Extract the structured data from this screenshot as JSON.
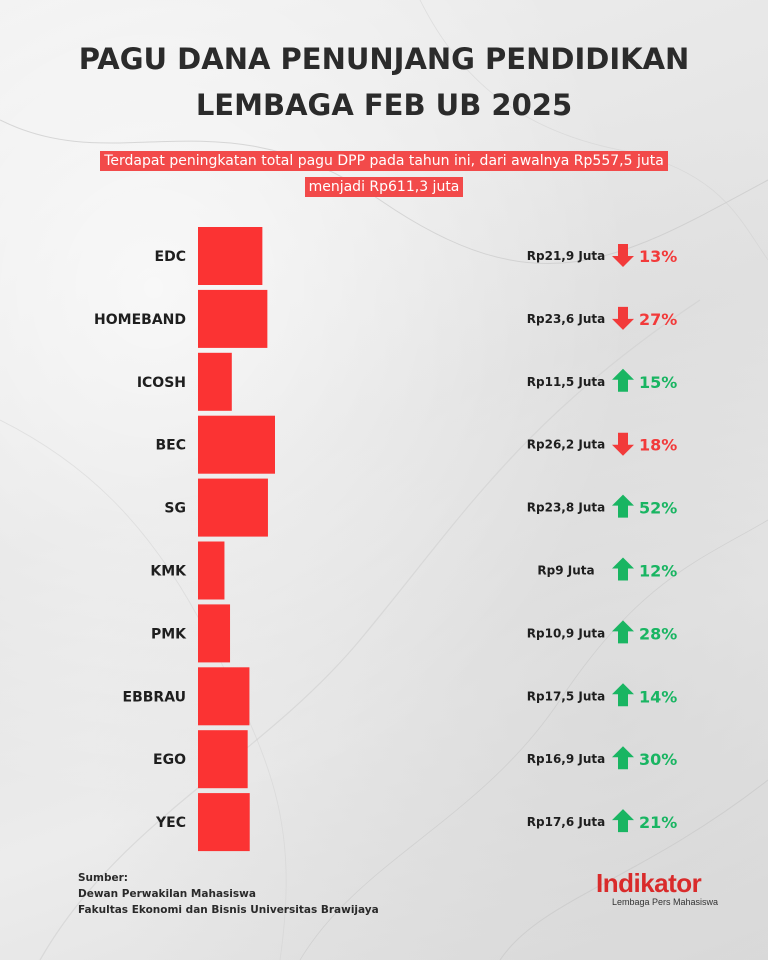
{
  "title_line1": "PAGU DANA PENUNJANG PENDIDIKAN",
  "title_line2": "LEMBAGA FEB UB 2025",
  "subtitle": "Terdapat peningkatan total pagu DPP pada tahun ini, dari awalnya Rp557,5 juta menjadi Rp611,3 juta",
  "colors": {
    "bar": "#fb3333",
    "up": "#19b562",
    "down": "#f23a3a",
    "title": "#2b2b2b",
    "highlight": "#f24a4a"
  },
  "chart_data": {
    "type": "bar",
    "orientation": "horizontal",
    "unit": "Juta",
    "categories": [
      "EDC",
      "HOMEBAND",
      "ICOSH",
      "BEC",
      "SG",
      "KMK",
      "PMK",
      "EBBRAU",
      "EGO",
      "YEC"
    ],
    "values": [
      21.9,
      23.6,
      11.5,
      26.2,
      23.8,
      9,
      10.9,
      17.5,
      16.9,
      17.6
    ],
    "value_labels": [
      "Rp21,9 Juta",
      "Rp23,6 Juta",
      "Rp11,5 Juta",
      "Rp26,2 Juta",
      "Rp23,8 Juta",
      "Rp9 Juta",
      "Rp10,9 Juta",
      "Rp17,5 Juta",
      "Rp16,9 Juta",
      "Rp17,6 Juta"
    ],
    "changes": [
      {
        "direction": "down",
        "label": "13%"
      },
      {
        "direction": "down",
        "label": "27%"
      },
      {
        "direction": "up",
        "label": "15%"
      },
      {
        "direction": "down",
        "label": "18%"
      },
      {
        "direction": "up",
        "label": "52%"
      },
      {
        "direction": "up",
        "label": "12%"
      },
      {
        "direction": "up",
        "label": "28%"
      },
      {
        "direction": "up",
        "label": "14%"
      },
      {
        "direction": "up",
        "label": "30%"
      },
      {
        "direction": "up",
        "label": "21%"
      }
    ],
    "xlim": [
      0,
      26.2
    ]
  },
  "source": {
    "heading": "Sumber:",
    "line1": "Dewan Perwakilan Mahasiswa",
    "line2": "Fakultas Ekonomi dan Bisnis Universitas Brawijaya"
  },
  "logo": {
    "name": "Indikator",
    "tagline": "Lembaga Pers Mahasiswa"
  }
}
